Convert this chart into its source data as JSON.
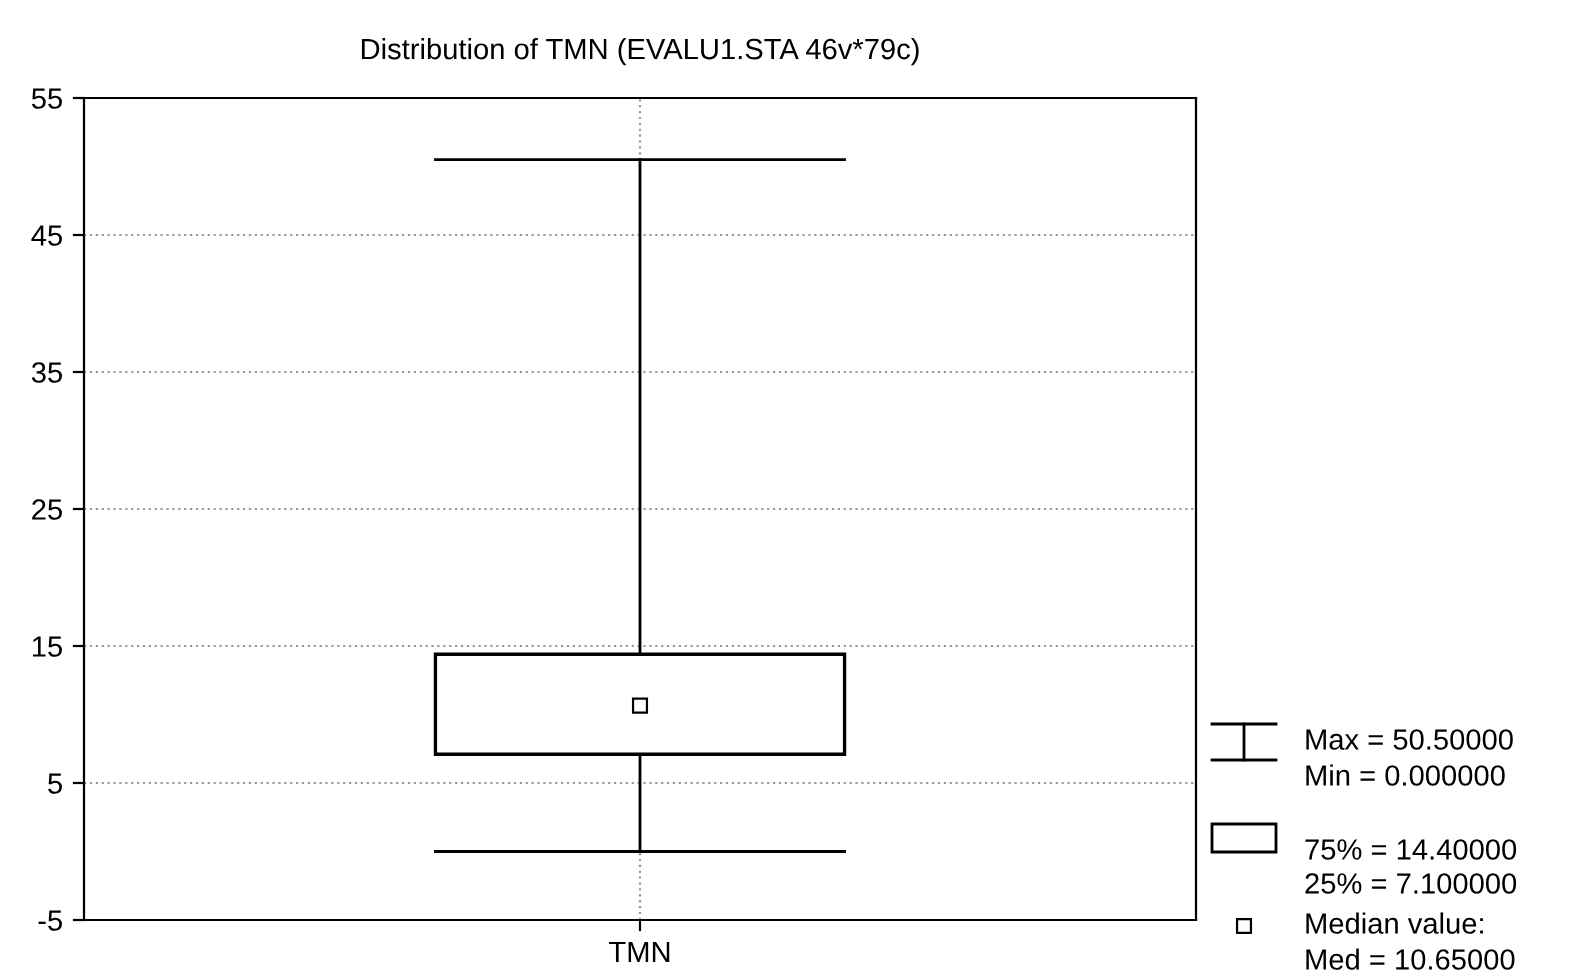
{
  "chart_data": {
    "type": "box",
    "title": "Distribution of TMN (EVALU1.STA 46v*79c)",
    "categories": [
      "TMN"
    ],
    "boxes": [
      {
        "low": 0,
        "q1": 7.1,
        "median": 10.65,
        "q3": 14.4,
        "high": 50.5
      }
    ],
    "ylim": [
      -5,
      55
    ],
    "yticks": [
      -5,
      5,
      15,
      25,
      35,
      45,
      55
    ],
    "grid": true,
    "annotations": [
      "Max = 50.50000",
      "Min = 0.000000",
      "75% = 14.40000",
      "25% = 7.100000",
      "Median value:",
      "Med = 10.65000"
    ]
  }
}
